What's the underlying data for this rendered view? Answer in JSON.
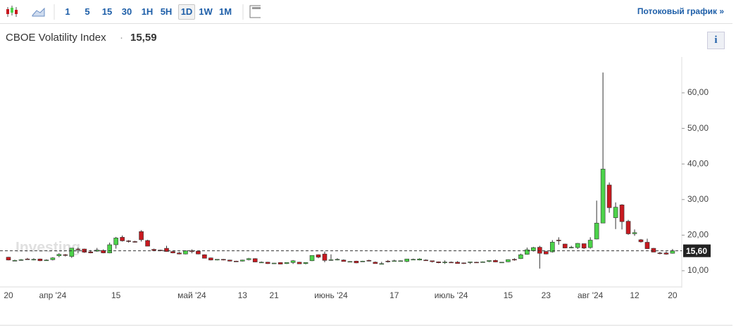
{
  "toolbar": {
    "intervals": [
      "1",
      "5",
      "15",
      "30",
      "1H",
      "5H",
      "1D",
      "1W",
      "1M"
    ],
    "active": 6,
    "link": "Потоковый график »"
  },
  "chart_data": {
    "type": "candlestick",
    "title": "CBOE Volatility Index",
    "last_value": "15,59",
    "watermark": "Investing",
    "categories": [
      "20",
      null,
      null,
      null,
      null,
      null,
      null,
      "апр '24",
      null,
      null,
      null,
      null,
      null,
      null,
      null,
      null,
      null,
      "15",
      null,
      null,
      null,
      null,
      null,
      null,
      null,
      null,
      null,
      null,
      null,
      "май '24",
      null,
      null,
      null,
      null,
      null,
      null,
      null,
      "13",
      null,
      null,
      null,
      null,
      "21",
      null,
      null,
      null,
      null,
      null,
      null,
      null,
      null,
      "июнь '24",
      null,
      null,
      null,
      null,
      null,
      null,
      null,
      null,
      null,
      "17",
      null,
      null,
      null,
      null,
      null,
      null,
      null,
      null,
      "июль '24",
      null,
      null,
      null,
      null,
      null,
      null,
      null,
      null,
      "15",
      null,
      null,
      null,
      null,
      null,
      "23",
      null,
      null,
      null,
      null,
      null,
      null,
      "авг '24",
      null,
      null,
      null,
      null,
      null,
      null,
      "12",
      null,
      null,
      null,
      null,
      null,
      "20"
    ],
    "open": [
      13.8,
      12.9,
      12.9,
      13.3,
      13.2,
      13.3,
      12.9,
      13.1,
      14.2,
      14.5,
      14.0,
      16.1,
      16.1,
      15.3,
      15.5,
      15.7,
      15.0,
      17.3,
      19.4,
      18.4,
      18.2,
      21.0,
      18.5,
      16.0,
      15.8,
      16.3,
      15.4,
      15.0,
      14.7,
      15.6,
      15.5,
      14.5,
      13.6,
      13.0,
      13.2,
      13.0,
      12.7,
      12.7,
      13.1,
      13.4,
      12.3,
      12.4,
      12.1,
      12.3,
      12.0,
      12.3,
      12.4,
      12.0,
      12.8,
      14.5,
      14.7,
      13.0,
      13.2,
      13.0,
      12.6,
      12.7,
      12.5,
      12.9,
      12.4,
      12.0,
      12.7,
      12.6,
      12.8,
      12.6,
      13.2,
      13.0,
      13.0,
      12.8,
      12.5,
      12.3,
      12.4,
      12.4,
      12.2,
      12.3,
      12.4,
      12.5,
      12.6,
      12.9,
      12.3,
      12.5,
      13.2,
      13.4,
      14.6,
      15.6,
      16.6,
      15.4,
      15.3,
      18.6,
      17.5,
      16.6,
      16.5,
      17.6,
      16.5,
      18.9,
      23.4,
      34.1,
      24.9,
      28.5,
      23.9,
      20.4,
      18.7,
      18.0,
      16.3,
      15.0,
      15.0,
      14.9
    ],
    "high": [
      13.9,
      13.1,
      13.3,
      13.6,
      13.5,
      13.4,
      13.2,
      13.8,
      14.9,
      14.7,
      16.4,
      16.5,
      16.2,
      15.8,
      16.4,
      16.0,
      17.9,
      19.5,
      19.9,
      18.6,
      18.4,
      21.4,
      18.7,
      16.2,
      15.9,
      17.0,
      15.5,
      15.3,
      15.7,
      16.0,
      15.6,
      14.6,
      13.7,
      13.2,
      13.3,
      13.1,
      12.8,
      13.1,
      13.6,
      13.5,
      12.6,
      12.5,
      12.2,
      12.4,
      12.3,
      13.0,
      12.5,
      12.4,
      14.3,
      14.6,
      15.4,
      14.6,
      13.5,
      13.2,
      12.7,
      12.8,
      12.8,
      13.1,
      12.6,
      12.5,
      13.0,
      13.1,
      12.9,
      13.3,
      13.4,
      13.5,
      13.2,
      12.8,
      12.6,
      12.9,
      12.6,
      12.7,
      12.3,
      12.5,
      12.5,
      12.6,
      12.9,
      13.1,
      12.4,
      13.2,
      13.5,
      14.8,
      16.5,
      16.7,
      17.0,
      15.6,
      18.6,
      19.4,
      17.6,
      17.0,
      17.8,
      17.6,
      19.4,
      29.7,
      65.7,
      34.8,
      29.2,
      28.7,
      24.3,
      21.6,
      18.9,
      19.0,
      16.4,
      15.3,
      15.4,
      16.1
    ],
    "low": [
      12.9,
      12.7,
      12.8,
      13.1,
      12.9,
      12.7,
      12.9,
      12.9,
      13.8,
      14.0,
      13.6,
      15.0,
      15.0,
      14.9,
      15.3,
      14.9,
      14.9,
      16.2,
      18.2,
      17.9,
      17.9,
      18.2,
      16.9,
      15.6,
      15.5,
      15.3,
      14.9,
      14.6,
      14.6,
      14.9,
      14.6,
      13.5,
      12.9,
      12.9,
      12.9,
      12.6,
      12.5,
      12.6,
      12.9,
      12.4,
      12.2,
      11.9,
      11.9,
      11.8,
      11.9,
      11.9,
      11.9,
      11.8,
      12.7,
      13.5,
      12.4,
      12.8,
      12.9,
      12.6,
      12.4,
      12.1,
      12.5,
      12.6,
      12.0,
      11.9,
      12.3,
      12.6,
      12.6,
      12.4,
      13.0,
      12.9,
      12.8,
      12.3,
      12.1,
      11.9,
      12.2,
      12.0,
      11.9,
      11.9,
      12.2,
      12.3,
      12.4,
      12.4,
      12.2,
      12.4,
      12.8,
      13.3,
      14.5,
      15.4,
      10.6,
      14.6,
      15.1,
      17.3,
      16.3,
      16.3,
      16.1,
      16.1,
      16.2,
      18.8,
      23.4,
      26.3,
      21.7,
      21.6,
      20.1,
      19.8,
      17.9,
      16.1,
      15.2,
      14.6,
      14.5,
      14.8
    ],
    "close": [
      13.0,
      12.9,
      13.1,
      13.2,
      13.2,
      12.8,
      13.0,
      13.6,
      14.6,
      14.3,
      16.35,
      16.0,
      15.2,
      15.0,
      15.8,
      15.0,
      17.3,
      19.2,
      18.4,
      18.2,
      18.0,
      18.7,
      16.9,
      15.7,
      15.7,
      15.4,
      15.0,
      14.7,
      15.6,
      15.4,
      14.7,
      13.5,
      13.0,
      13.2,
      13.0,
      12.7,
      12.55,
      13.0,
      13.4,
      12.45,
      12.4,
      11.99,
      12.15,
      11.86,
      12.3,
      12.8,
      11.93,
      12.3,
      14.3,
      13.8,
      12.9,
      13.1,
      13.2,
      12.6,
      12.6,
      12.2,
      12.7,
      12.8,
      12.0,
      12.0,
      12.66,
      12.8,
      12.8,
      13.3,
      13.2,
      13.3,
      12.84,
      12.55,
      12.24,
      12.44,
      12.22,
      12.03,
      12.09,
      12.48,
      12.37,
      12.51,
      12.85,
      12.46,
      12.4,
      13.12,
      13.19,
      14.5,
      15.9,
      16.5,
      14.9,
      14.7,
      18.04,
      18.46,
      16.39,
      16.6,
      17.69,
      16.36,
      18.59,
      23.39,
      38.57,
      27.71,
      27.85,
      23.79,
      20.37,
      20.71,
      18.12,
      16.19,
      15.23,
      14.8,
      14.65,
      15.59
    ],
    "up_color": "#4cd34a",
    "down_color": "#c8191f",
    "ylim": [
      6,
      70
    ],
    "yticks": [
      {
        "value": 10,
        "label": "10,00"
      },
      {
        "value": 20,
        "label": "20,00"
      },
      {
        "value": 30,
        "label": "30,00"
      },
      {
        "value": 40,
        "label": "40,00"
      },
      {
        "value": 50,
        "label": "50,00"
      },
      {
        "value": 60,
        "label": "60,00"
      }
    ],
    "last_price": {
      "value": 15.6,
      "label": "15,60"
    },
    "grid": false
  }
}
